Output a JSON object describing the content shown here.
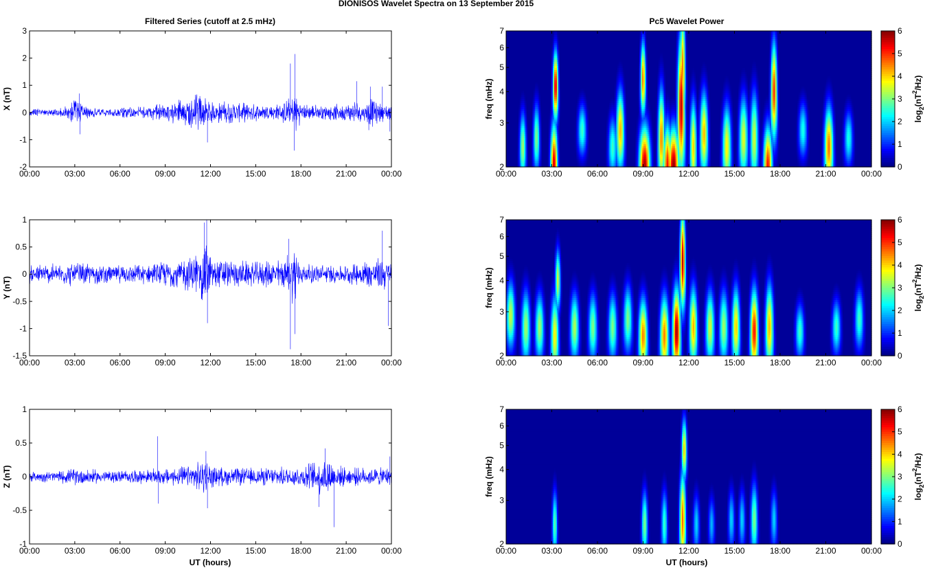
{
  "figure": {
    "title": "DIONISOS Wavelet Spectra on 13 September 2015",
    "left_title": "Filtered Series (cutoff at 2.5 mHz)",
    "right_title": "Pc5 Wavelet Power",
    "xlabel": "UT (hours)",
    "freq_label": "freq (mHz)",
    "colorbar_label": "log2(nT2/Hz)"
  },
  "chart_data": [
    {
      "type": "line",
      "component": "X",
      "ylabel": "X (nT)",
      "xlim": [
        0,
        24
      ],
      "ylim": [
        -2,
        3
      ],
      "xticks": [
        "00:00",
        "03:00",
        "06:00",
        "09:00",
        "12:00",
        "15:00",
        "18:00",
        "21:00",
        "00:00"
      ],
      "yticks": [
        "-2",
        "-1",
        "0",
        "1",
        "2",
        "3"
      ],
      "color": "#0000ff",
      "envelope_x": [
        0,
        2,
        3.2,
        3.6,
        5,
        8,
        9.5,
        10.5,
        11.3,
        11.9,
        13,
        15,
        16.5,
        17.3,
        17.6,
        18,
        19.5,
        21,
        21.7,
        22.2,
        22.6,
        23,
        23.5,
        24
      ],
      "envelope": [
        0.15,
        0.18,
        0.55,
        0.25,
        0.15,
        0.3,
        0.45,
        0.6,
        0.85,
        0.45,
        0.45,
        0.35,
        0.35,
        0.6,
        0.95,
        0.35,
        0.3,
        0.35,
        0.5,
        0.3,
        0.7,
        0.45,
        0.35,
        0.35
      ],
      "spikes": [
        [
          3.3,
          0.7
        ],
        [
          3.35,
          -0.8
        ],
        [
          11.8,
          -1.1
        ],
        [
          17.3,
          1.8
        ],
        [
          17.6,
          2.15
        ],
        [
          17.55,
          -1.4
        ],
        [
          21.7,
          1.15
        ],
        [
          22.6,
          0.95
        ],
        [
          22.5,
          -0.65
        ],
        [
          23.4,
          0.95
        ],
        [
          23.9,
          -0.7
        ]
      ]
    },
    {
      "type": "line",
      "component": "Y",
      "ylabel": "Y (nT)",
      "xlim": [
        0,
        24
      ],
      "ylim": [
        -1.5,
        1
      ],
      "xticks": [
        "00:00",
        "03:00",
        "06:00",
        "09:00",
        "12:00",
        "15:00",
        "18:00",
        "21:00",
        "00:00"
      ],
      "yticks": [
        "-1.5",
        "-1",
        "-0.5",
        "0",
        "0.5",
        "1"
      ],
      "color": "#0000ff",
      "envelope_x": [
        0,
        2,
        3.2,
        5,
        8,
        9.5,
        10.5,
        11.3,
        11.7,
        12.1,
        13,
        15,
        16.5,
        17.3,
        17.6,
        18,
        19.5,
        21,
        22.3,
        22.8,
        23.3,
        24
      ],
      "envelope": [
        0.2,
        0.22,
        0.25,
        0.18,
        0.2,
        0.3,
        0.35,
        0.5,
        0.7,
        0.35,
        0.3,
        0.25,
        0.3,
        0.45,
        0.7,
        0.2,
        0.2,
        0.18,
        0.3,
        0.3,
        0.35,
        0.3
      ],
      "spikes": [
        [
          11.6,
          0.95
        ],
        [
          11.75,
          1.0
        ],
        [
          11.8,
          -0.9
        ],
        [
          17.2,
          0.65
        ],
        [
          17.3,
          -1.38
        ],
        [
          17.6,
          -1.1
        ],
        [
          23.4,
          0.8
        ],
        [
          23.8,
          -0.95
        ]
      ]
    },
    {
      "type": "line",
      "component": "Z",
      "ylabel": "Z (nT)",
      "xlim": [
        0,
        24
      ],
      "ylim": [
        -1,
        1
      ],
      "xticks": [
        "00:00",
        "03:00",
        "06:00",
        "09:00",
        "12:00",
        "15:00",
        "18:00",
        "21:00",
        "00:00"
      ],
      "yticks": [
        "-1",
        "-0.5",
        "0",
        "0.5",
        "1"
      ],
      "color": "#0000ff",
      "envelope_x": [
        0,
        2,
        3.3,
        5,
        8,
        9.5,
        10.5,
        11.3,
        11.7,
        12.1,
        13,
        15,
        16.5,
        18,
        19.3,
        19.8,
        20.3,
        21,
        22.5,
        24
      ],
      "envelope": [
        0.08,
        0.1,
        0.15,
        0.1,
        0.12,
        0.15,
        0.18,
        0.25,
        0.3,
        0.18,
        0.15,
        0.15,
        0.15,
        0.18,
        0.3,
        0.35,
        0.2,
        0.15,
        0.15,
        0.15
      ],
      "spikes": [
        [
          8.5,
          0.6
        ],
        [
          8.55,
          -0.4
        ],
        [
          11.7,
          0.38
        ],
        [
          11.8,
          -0.47
        ],
        [
          19.2,
          -0.45
        ],
        [
          20.2,
          -0.75
        ],
        [
          19.6,
          0.42
        ],
        [
          23.9,
          0.3
        ]
      ]
    },
    {
      "type": "heatmap",
      "component": "X",
      "ylabel": "freq (mHz)",
      "xlim": [
        0,
        24
      ],
      "ylim": [
        2,
        7
      ],
      "yscale": "log",
      "xticks": [
        "00:00",
        "03:00",
        "06:00",
        "09:00",
        "12:00",
        "15:00",
        "18:00",
        "21:00",
        "00:00"
      ],
      "yticks": [
        "2",
        "3",
        "4",
        "5",
        "6",
        "7"
      ],
      "colorbar": {
        "range": [
          0,
          6
        ],
        "ticks": [
          "0",
          "1",
          "2",
          "3",
          "4",
          "5",
          "6"
        ],
        "colormap": "jet"
      },
      "peaks": [
        [
          3.15,
          2.0,
          2.6,
          5.6,
          0.16
        ],
        [
          3.25,
          4.2,
          2.0,
          5.5,
          0.12
        ],
        [
          9.1,
          2.0,
          2.4,
          5.8,
          0.25
        ],
        [
          9.0,
          4.5,
          2.2,
          4.5,
          0.12
        ],
        [
          10.6,
          2.0,
          2.5,
          5.2,
          0.18
        ],
        [
          11.0,
          2.0,
          2.3,
          5.9,
          0.25
        ],
        [
          11.5,
          3.5,
          4.5,
          5.6,
          0.16
        ],
        [
          11.6,
          5.0,
          3.5,
          4.5,
          0.12
        ],
        [
          17.2,
          2.0,
          2.4,
          5.2,
          0.2
        ],
        [
          17.6,
          4.0,
          3.0,
          5.0,
          0.14
        ],
        [
          21.2,
          2.4,
          2.4,
          4.6,
          0.2
        ],
        [
          7.5,
          2.8,
          2.4,
          4.2,
          0.18
        ],
        [
          13.0,
          2.7,
          2.5,
          4.2,
          0.18
        ],
        [
          14.5,
          2.4,
          2.5,
          3.8,
          0.2
        ],
        [
          15.6,
          2.6,
          2.5,
          3.6,
          0.2
        ],
        [
          16.3,
          2.6,
          2.8,
          3.5,
          0.18
        ],
        [
          10.2,
          2.6,
          3.0,
          4.5,
          0.15
        ],
        [
          12.3,
          2.4,
          2.8,
          4.0,
          0.15
        ],
        [
          1.1,
          2.4,
          2.0,
          3.2,
          0.15
        ],
        [
          2.0,
          2.6,
          2.0,
          3.0,
          0.15
        ],
        [
          5.0,
          2.8,
          1.5,
          2.6,
          0.2
        ],
        [
          7.0,
          2.4,
          1.8,
          2.6,
          0.2
        ],
        [
          19.5,
          2.8,
          1.6,
          2.4,
          0.2
        ],
        [
          22.5,
          2.6,
          1.6,
          2.4,
          0.2
        ]
      ]
    },
    {
      "type": "heatmap",
      "component": "Y",
      "ylabel": "freq (mHz)",
      "xlim": [
        0,
        24
      ],
      "ylim": [
        2,
        7
      ],
      "yscale": "log",
      "xticks": [
        "00:00",
        "03:00",
        "06:00",
        "09:00",
        "12:00",
        "15:00",
        "18:00",
        "21:00",
        "00:00"
      ],
      "yticks": [
        "2",
        "3",
        "4",
        "5",
        "6",
        "7"
      ],
      "colorbar": {
        "range": [
          0,
          6
        ],
        "ticks": [
          "0",
          "1",
          "2",
          "3",
          "4",
          "5",
          "6"
        ],
        "colormap": "jet"
      },
      "peaks": [
        [
          11.2,
          2.5,
          2.6,
          5.8,
          0.18
        ],
        [
          11.6,
          4.8,
          3.0,
          5.6,
          0.12
        ],
        [
          16.3,
          2.5,
          2.5,
          5.2,
          0.18
        ],
        [
          9.0,
          2.4,
          2.2,
          4.5,
          0.2
        ],
        [
          10.4,
          2.4,
          2.4,
          4.5,
          0.2
        ],
        [
          12.3,
          2.6,
          2.4,
          4.2,
          0.18
        ],
        [
          15.1,
          2.6,
          2.4,
          4.0,
          0.18
        ],
        [
          17.3,
          2.6,
          2.6,
          4.2,
          0.18
        ],
        [
          3.2,
          2.4,
          2.4,
          3.8,
          0.18
        ],
        [
          3.4,
          4.0,
          1.8,
          3.5,
          0.12
        ],
        [
          0.3,
          2.9,
          2.0,
          3.4,
          0.2
        ],
        [
          1.3,
          2.6,
          2.2,
          3.2,
          0.2
        ],
        [
          2.2,
          2.6,
          2.0,
          3.2,
          0.2
        ],
        [
          4.5,
          2.6,
          2.0,
          3.3,
          0.2
        ],
        [
          5.7,
          2.6,
          2.0,
          3.0,
          0.2
        ],
        [
          7.0,
          2.6,
          2.0,
          3.0,
          0.2
        ],
        [
          8.0,
          2.8,
          2.0,
          3.0,
          0.2
        ],
        [
          13.4,
          2.6,
          2.2,
          3.5,
          0.2
        ],
        [
          14.3,
          2.6,
          2.2,
          3.2,
          0.2
        ],
        [
          19.3,
          2.5,
          1.6,
          2.6,
          0.2
        ],
        [
          21.7,
          2.6,
          1.6,
          2.6,
          0.2
        ],
        [
          23.2,
          2.8,
          1.8,
          2.6,
          0.2
        ]
      ]
    },
    {
      "type": "heatmap",
      "component": "Z",
      "ylabel": "freq (mHz)",
      "xlim": [
        0,
        24
      ],
      "ylim": [
        2,
        7
      ],
      "yscale": "log",
      "xticks": [
        "00:00",
        "03:00",
        "06:00",
        "09:00",
        "12:00",
        "15:00",
        "18:00",
        "21:00",
        "00:00"
      ],
      "yticks": [
        "2",
        "3",
        "4",
        "5",
        "6",
        "7"
      ],
      "colorbar": {
        "range": [
          0,
          6
        ],
        "ticks": [
          "0",
          "1",
          "2",
          "3",
          "4",
          "5",
          "6"
        ],
        "colormap": "jet"
      },
      "peaks": [
        [
          11.6,
          2.5,
          3.0,
          4.6,
          0.14
        ],
        [
          11.7,
          4.8,
          1.8,
          4.0,
          0.12
        ],
        [
          3.2,
          2.4,
          2.0,
          2.8,
          0.12
        ],
        [
          9.1,
          2.4,
          2.0,
          3.0,
          0.14
        ],
        [
          10.4,
          2.4,
          2.0,
          2.6,
          0.14
        ],
        [
          16.3,
          2.5,
          2.2,
          3.0,
          0.16
        ],
        [
          12.5,
          2.4,
          1.8,
          2.0,
          0.15
        ],
        [
          13.5,
          2.4,
          1.6,
          1.8,
          0.15
        ],
        [
          14.8,
          2.5,
          1.8,
          2.0,
          0.15
        ],
        [
          15.5,
          2.5,
          1.8,
          2.0,
          0.15
        ],
        [
          17.6,
          2.5,
          1.8,
          2.0,
          0.15
        ]
      ]
    }
  ]
}
